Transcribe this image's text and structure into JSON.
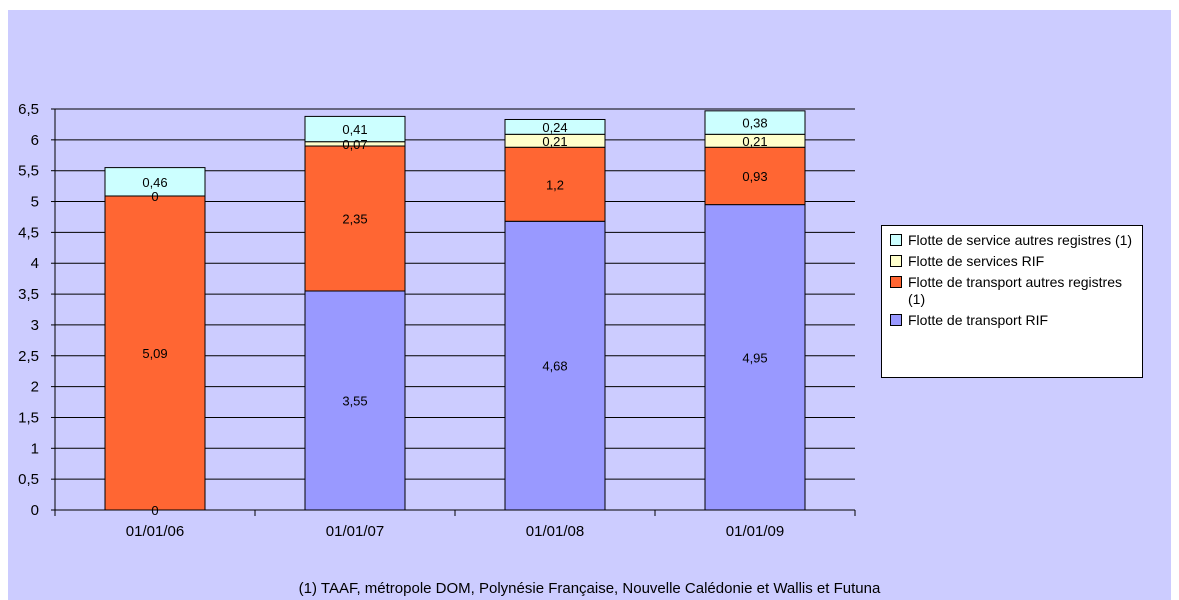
{
  "chart_data": {
    "type": "bar",
    "stacked": true,
    "categories": [
      "01/01/06",
      "01/01/07",
      "01/01/08",
      "01/01/09"
    ],
    "series": [
      {
        "name": "Flotte de transport RIF",
        "color": "#9999ff",
        "values": [
          0,
          3.55,
          4.68,
          4.95
        ],
        "labels": [
          "0",
          "3,55",
          "4,68",
          "4,95"
        ]
      },
      {
        "name": "Flotte de transport autres registres (1)",
        "color": "#ff6633",
        "values": [
          5.09,
          2.35,
          1.2,
          0.93
        ],
        "labels": [
          "5,09",
          "2,35",
          "1,2",
          "0,93"
        ]
      },
      {
        "name": "Flotte de services RIF",
        "color": "#ffffcc",
        "values": [
          0,
          0.07,
          0.21,
          0.21
        ],
        "labels": [
          "0",
          "0,07",
          "0,21",
          "0,21"
        ]
      },
      {
        "name": "Flotte de service autres registres (1)",
        "color": "#ccffff",
        "values": [
          0.46,
          0.41,
          0.24,
          0.38
        ],
        "labels": [
          "0,46",
          "0,41",
          "0,24",
          "0,38"
        ]
      }
    ],
    "legend_order": [
      3,
      2,
      1,
      0
    ],
    "legend_position": "right",
    "ylim": [
      0,
      6.5
    ],
    "yticks": [
      "0",
      "0,5",
      "1",
      "1,5",
      "2",
      "2,5",
      "3",
      "3,5",
      "4",
      "4,5",
      "5",
      "5,5",
      "6",
      "6,5"
    ],
    "grid": true,
    "xlabel": "",
    "ylabel": "",
    "title": ""
  },
  "footnote": "(1) TAAF, métropole DOM, Polynésie Française, Nouvelle Calédonie et Wallis et Futuna"
}
